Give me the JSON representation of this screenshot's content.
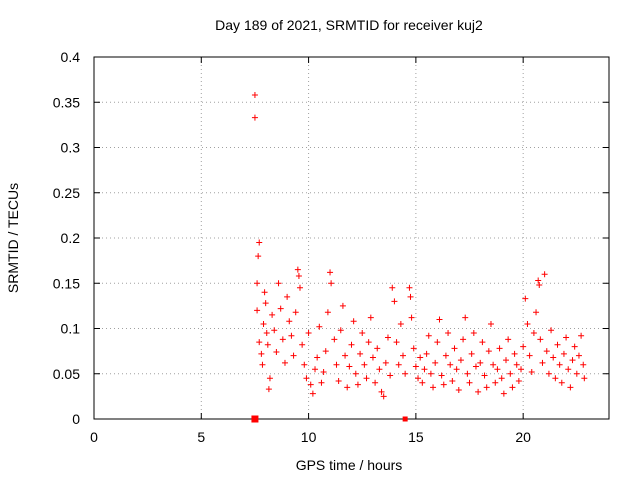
{
  "chart_data": {
    "type": "scatter",
    "title": "Day 189 of 2021, SRMTID for receiver kuj2",
    "xlabel": "GPS time / hours",
    "ylabel": "SRMTID / TECUs",
    "xlim": [
      0,
      24
    ],
    "ylim": [
      0,
      0.4
    ],
    "x_ticks": [
      "0",
      "5",
      "10",
      "15",
      "20"
    ],
    "y_ticks": [
      "0",
      "0.05",
      "0.1",
      "0.15",
      "0.2",
      "0.25",
      "0.3",
      "0.35",
      "0.4"
    ],
    "grid": true,
    "marker": "+",
    "color": "#ff0000",
    "points": [
      [
        7.5,
        0.358
      ],
      [
        7.5,
        0.333
      ],
      [
        7.7,
        0.195
      ],
      [
        7.65,
        0.18
      ],
      [
        7.6,
        0.15
      ],
      [
        7.6,
        0.12
      ],
      [
        7.7,
        0.085
      ],
      [
        7.8,
        0.072
      ],
      [
        7.9,
        0.105
      ],
      [
        7.85,
        0.06
      ],
      [
        7.95,
        0.14
      ],
      [
        8.0,
        0.128
      ],
      [
        8.05,
        0.095
      ],
      [
        8.1,
        0.082
      ],
      [
        8.2,
        0.045
      ],
      [
        8.15,
        0.033
      ],
      [
        8.3,
        0.115
      ],
      [
        8.4,
        0.098
      ],
      [
        8.5,
        0.074
      ],
      [
        8.6,
        0.15
      ],
      [
        8.7,
        0.122
      ],
      [
        8.8,
        0.088
      ],
      [
        8.9,
        0.062
      ],
      [
        9.0,
        0.135
      ],
      [
        9.1,
        0.108
      ],
      [
        9.2,
        0.092
      ],
      [
        9.3,
        0.07
      ],
      [
        9.4,
        0.118
      ],
      [
        9.5,
        0.165
      ],
      [
        9.55,
        0.158
      ],
      [
        9.6,
        0.145
      ],
      [
        9.7,
        0.082
      ],
      [
        9.8,
        0.06
      ],
      [
        9.9,
        0.045
      ],
      [
        10.0,
        0.095
      ],
      [
        10.1,
        0.038
      ],
      [
        10.2,
        0.028
      ],
      [
        10.3,
        0.055
      ],
      [
        10.4,
        0.068
      ],
      [
        10.5,
        0.102
      ],
      [
        10.6,
        0.04
      ],
      [
        10.7,
        0.052
      ],
      [
        10.8,
        0.075
      ],
      [
        10.9,
        0.118
      ],
      [
        11.0,
        0.162
      ],
      [
        11.05,
        0.15
      ],
      [
        11.2,
        0.088
      ],
      [
        11.3,
        0.06
      ],
      [
        11.4,
        0.042
      ],
      [
        11.5,
        0.098
      ],
      [
        11.6,
        0.125
      ],
      [
        11.7,
        0.07
      ],
      [
        11.8,
        0.035
      ],
      [
        11.9,
        0.058
      ],
      [
        12.0,
        0.082
      ],
      [
        12.1,
        0.108
      ],
      [
        12.2,
        0.05
      ],
      [
        12.3,
        0.038
      ],
      [
        12.4,
        0.072
      ],
      [
        12.5,
        0.095
      ],
      [
        12.6,
        0.06
      ],
      [
        12.7,
        0.045
      ],
      [
        12.8,
        0.085
      ],
      [
        12.9,
        0.112
      ],
      [
        13.0,
        0.068
      ],
      [
        13.1,
        0.04
      ],
      [
        13.2,
        0.078
      ],
      [
        13.3,
        0.055
      ],
      [
        13.4,
        0.03
      ],
      [
        13.5,
        0.025
      ],
      [
        13.6,
        0.062
      ],
      [
        13.7,
        0.09
      ],
      [
        13.8,
        0.048
      ],
      [
        13.9,
        0.145
      ],
      [
        14.0,
        0.13
      ],
      [
        14.1,
        0.085
      ],
      [
        14.2,
        0.06
      ],
      [
        14.3,
        0.105
      ],
      [
        14.4,
        0.07
      ],
      [
        14.5,
        0.05
      ],
      [
        14.7,
        0.145
      ],
      [
        14.75,
        0.135
      ],
      [
        14.8,
        0.112
      ],
      [
        14.9,
        0.078
      ],
      [
        15.0,
        0.058
      ],
      [
        15.1,
        0.045
      ],
      [
        15.2,
        0.068
      ],
      [
        15.3,
        0.04
      ],
      [
        15.4,
        0.055
      ],
      [
        15.5,
        0.072
      ],
      [
        15.6,
        0.092
      ],
      [
        15.7,
        0.05
      ],
      [
        15.8,
        0.035
      ],
      [
        15.9,
        0.062
      ],
      [
        16.0,
        0.085
      ],
      [
        16.1,
        0.11
      ],
      [
        16.2,
        0.048
      ],
      [
        16.3,
        0.038
      ],
      [
        16.4,
        0.07
      ],
      [
        16.5,
        0.095
      ],
      [
        16.6,
        0.06
      ],
      [
        16.7,
        0.042
      ],
      [
        16.8,
        0.078
      ],
      [
        16.9,
        0.055
      ],
      [
        17.0,
        0.032
      ],
      [
        17.1,
        0.065
      ],
      [
        17.2,
        0.088
      ],
      [
        17.3,
        0.112
      ],
      [
        17.4,
        0.05
      ],
      [
        17.5,
        0.04
      ],
      [
        17.6,
        0.072
      ],
      [
        17.7,
        0.095
      ],
      [
        17.8,
        0.058
      ],
      [
        17.9,
        0.03
      ],
      [
        18.0,
        0.062
      ],
      [
        18.1,
        0.085
      ],
      [
        18.2,
        0.048
      ],
      [
        18.3,
        0.035
      ],
      [
        18.4,
        0.075
      ],
      [
        18.5,
        0.105
      ],
      [
        18.6,
        0.06
      ],
      [
        18.7,
        0.04
      ],
      [
        18.8,
        0.055
      ],
      [
        18.9,
        0.078
      ],
      [
        19.0,
        0.045
      ],
      [
        19.1,
        0.028
      ],
      [
        19.2,
        0.065
      ],
      [
        19.3,
        0.088
      ],
      [
        19.4,
        0.05
      ],
      [
        19.5,
        0.035
      ],
      [
        19.6,
        0.072
      ],
      [
        19.7,
        0.06
      ],
      [
        19.8,
        0.042
      ],
      [
        19.9,
        0.055
      ],
      [
        20.0,
        0.08
      ],
      [
        20.1,
        0.133
      ],
      [
        20.2,
        0.105
      ],
      [
        20.3,
        0.07
      ],
      [
        20.4,
        0.052
      ],
      [
        20.5,
        0.095
      ],
      [
        20.6,
        0.118
      ],
      [
        20.7,
        0.153
      ],
      [
        20.75,
        0.148
      ],
      [
        20.8,
        0.088
      ],
      [
        20.9,
        0.062
      ],
      [
        21.0,
        0.16
      ],
      [
        21.1,
        0.075
      ],
      [
        21.2,
        0.05
      ],
      [
        21.3,
        0.098
      ],
      [
        21.4,
        0.068
      ],
      [
        21.5,
        0.045
      ],
      [
        21.6,
        0.082
      ],
      [
        21.7,
        0.06
      ],
      [
        21.8,
        0.04
      ],
      [
        21.9,
        0.072
      ],
      [
        22.0,
        0.09
      ],
      [
        22.1,
        0.055
      ],
      [
        22.2,
        0.035
      ],
      [
        22.3,
        0.065
      ],
      [
        22.4,
        0.08
      ],
      [
        22.5,
        0.05
      ],
      [
        22.6,
        0.07
      ],
      [
        22.7,
        0.092
      ],
      [
        22.8,
        0.06
      ],
      [
        22.85,
        0.045
      ]
    ],
    "x_markers": [
      {
        "x": 7.5,
        "shape": "square"
      },
      {
        "x": 14.5,
        "shape": "small-square"
      }
    ]
  }
}
